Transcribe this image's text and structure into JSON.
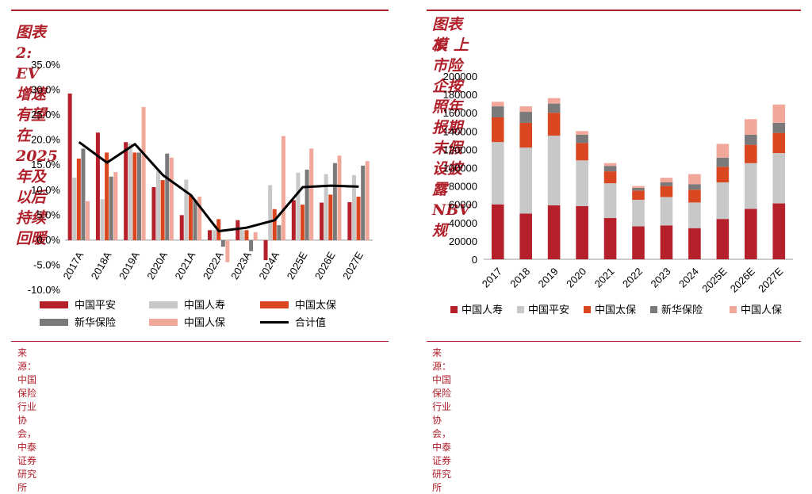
{
  "left": {
    "title": "图表 2:   EV 增速有望在 2025 年及以后持续回暖",
    "source": "来源：中国保险行业协会，中泰证券研究所"
  },
  "right": {
    "title_line1": "图表 3:  上市险企按照年报期末假设披露 NBV 规",
    "title_line2": "模",
    "source": "来源：中国保险行业协会，中泰证券研究所"
  },
  "colors": {
    "pingan": "#b5202a",
    "renshou": "#c8c8c8",
    "taibao": "#d9461f",
    "xinhua": "#7a7a7a",
    "renbao": "#f1a79a",
    "total": "#000000",
    "accent": "#b0202a"
  },
  "chart_data": [
    {
      "type": "bar",
      "title": "EV 增速有望在 2025 年及以后持续回暖",
      "categories": [
        "2017A",
        "2018A",
        "2019A",
        "2020A",
        "2021A",
        "2022A",
        "2023A",
        "2024A",
        "2025E",
        "2026E",
        "2027E"
      ],
      "series": [
        {
          "name": "中国平安",
          "key": "pingan",
          "values": [
            29.3,
            21.5,
            19.6,
            10.6,
            5.0,
            2.0,
            4.0,
            -4.0,
            8.0,
            7.5,
            7.6
          ]
        },
        {
          "name": "中国人寿",
          "key": "renshou",
          "values": [
            12.5,
            8.2,
            19.3,
            13.9,
            12.1,
            2.0,
            2.0,
            11.0,
            13.5,
            13.2,
            13.0
          ]
        },
        {
          "name": "中国太保",
          "key": "taibao",
          "values": [
            16.3,
            17.5,
            17.5,
            12.0,
            9.0,
            4.2,
            2.0,
            6.2,
            7.1,
            9.1,
            8.7
          ]
        },
        {
          "name": "新华保险",
          "key": "xinhua",
          "values": [
            18.3,
            12.7,
            17.5,
            17.3,
            8.0,
            -1.3,
            -2.2,
            3.0,
            14.1,
            15.4,
            14.9
          ]
        },
        {
          "name": "中国人保",
          "key": "renbao",
          "values": [
            7.8,
            13.6,
            26.6,
            16.5,
            8.7,
            -4.4,
            1.6,
            20.8,
            18.3,
            16.9,
            15.8
          ]
        }
      ],
      "line": {
        "name": "合计值",
        "key": "total",
        "values": [
          19.6,
          15.5,
          19.2,
          13.0,
          9.0,
          1.8,
          2.5,
          4.0,
          10.6,
          10.9,
          10.7
        ]
      },
      "ylim": [
        -10,
        35
      ],
      "yticks": [
        -10,
        -5,
        0,
        5,
        10,
        15,
        20,
        25,
        30,
        35
      ],
      "ytick_labels": [
        "-10.0%",
        "-5.0%",
        "0.0%",
        "5.0%",
        "10.0%",
        "15.0%",
        "20.0%",
        "25.0%",
        "30.0%",
        "35.0%"
      ],
      "legend": [
        "中国平安",
        "中国人寿",
        "中国太保",
        "新华保险",
        "中国人保",
        "合计值"
      ],
      "legend_position": "bottom"
    },
    {
      "type": "bar",
      "stacked": true,
      "title": "上市险企按照年报期末假设披露 NBV 规模",
      "categories": [
        "2017",
        "2018",
        "2019",
        "2020",
        "2021",
        "2022",
        "2023",
        "2024",
        "2025E",
        "2026E",
        "2027E"
      ],
      "series": [
        {
          "name": "中国人寿",
          "key": "pingan",
          "values": [
            60000,
            50000,
            59000,
            58000,
            45000,
            36000,
            37000,
            34000,
            44000,
            55000,
            61000
          ]
        },
        {
          "name": "中国平安",
          "key": "renshou",
          "values": [
            68000,
            72000,
            76000,
            50000,
            38000,
            29000,
            31000,
            28000,
            40000,
            50000,
            55000
          ]
        },
        {
          "name": "中国太保",
          "key": "taibao",
          "values": [
            27000,
            27000,
            25000,
            19000,
            13000,
            10000,
            12000,
            14000,
            17000,
            20000,
            22000
          ]
        },
        {
          "name": "新华保险",
          "key": "xinhua",
          "values": [
            12000,
            12000,
            10000,
            9000,
            6000,
            3000,
            4000,
            6000,
            10000,
            11000,
            11000
          ]
        },
        {
          "name": "中国人保",
          "key": "renbao",
          "values": [
            5000,
            6000,
            6000,
            4000,
            3000,
            2000,
            5000,
            11000,
            15000,
            17000,
            20000
          ]
        }
      ],
      "ylim": [
        0,
        200000
      ],
      "yticks": [
        0,
        20000,
        40000,
        60000,
        80000,
        100000,
        120000,
        140000,
        160000,
        180000,
        200000
      ],
      "legend": [
        "中国人寿",
        "中国平安",
        "中国太保",
        "新华保险",
        "中国人保"
      ],
      "legend_position": "bottom"
    }
  ]
}
